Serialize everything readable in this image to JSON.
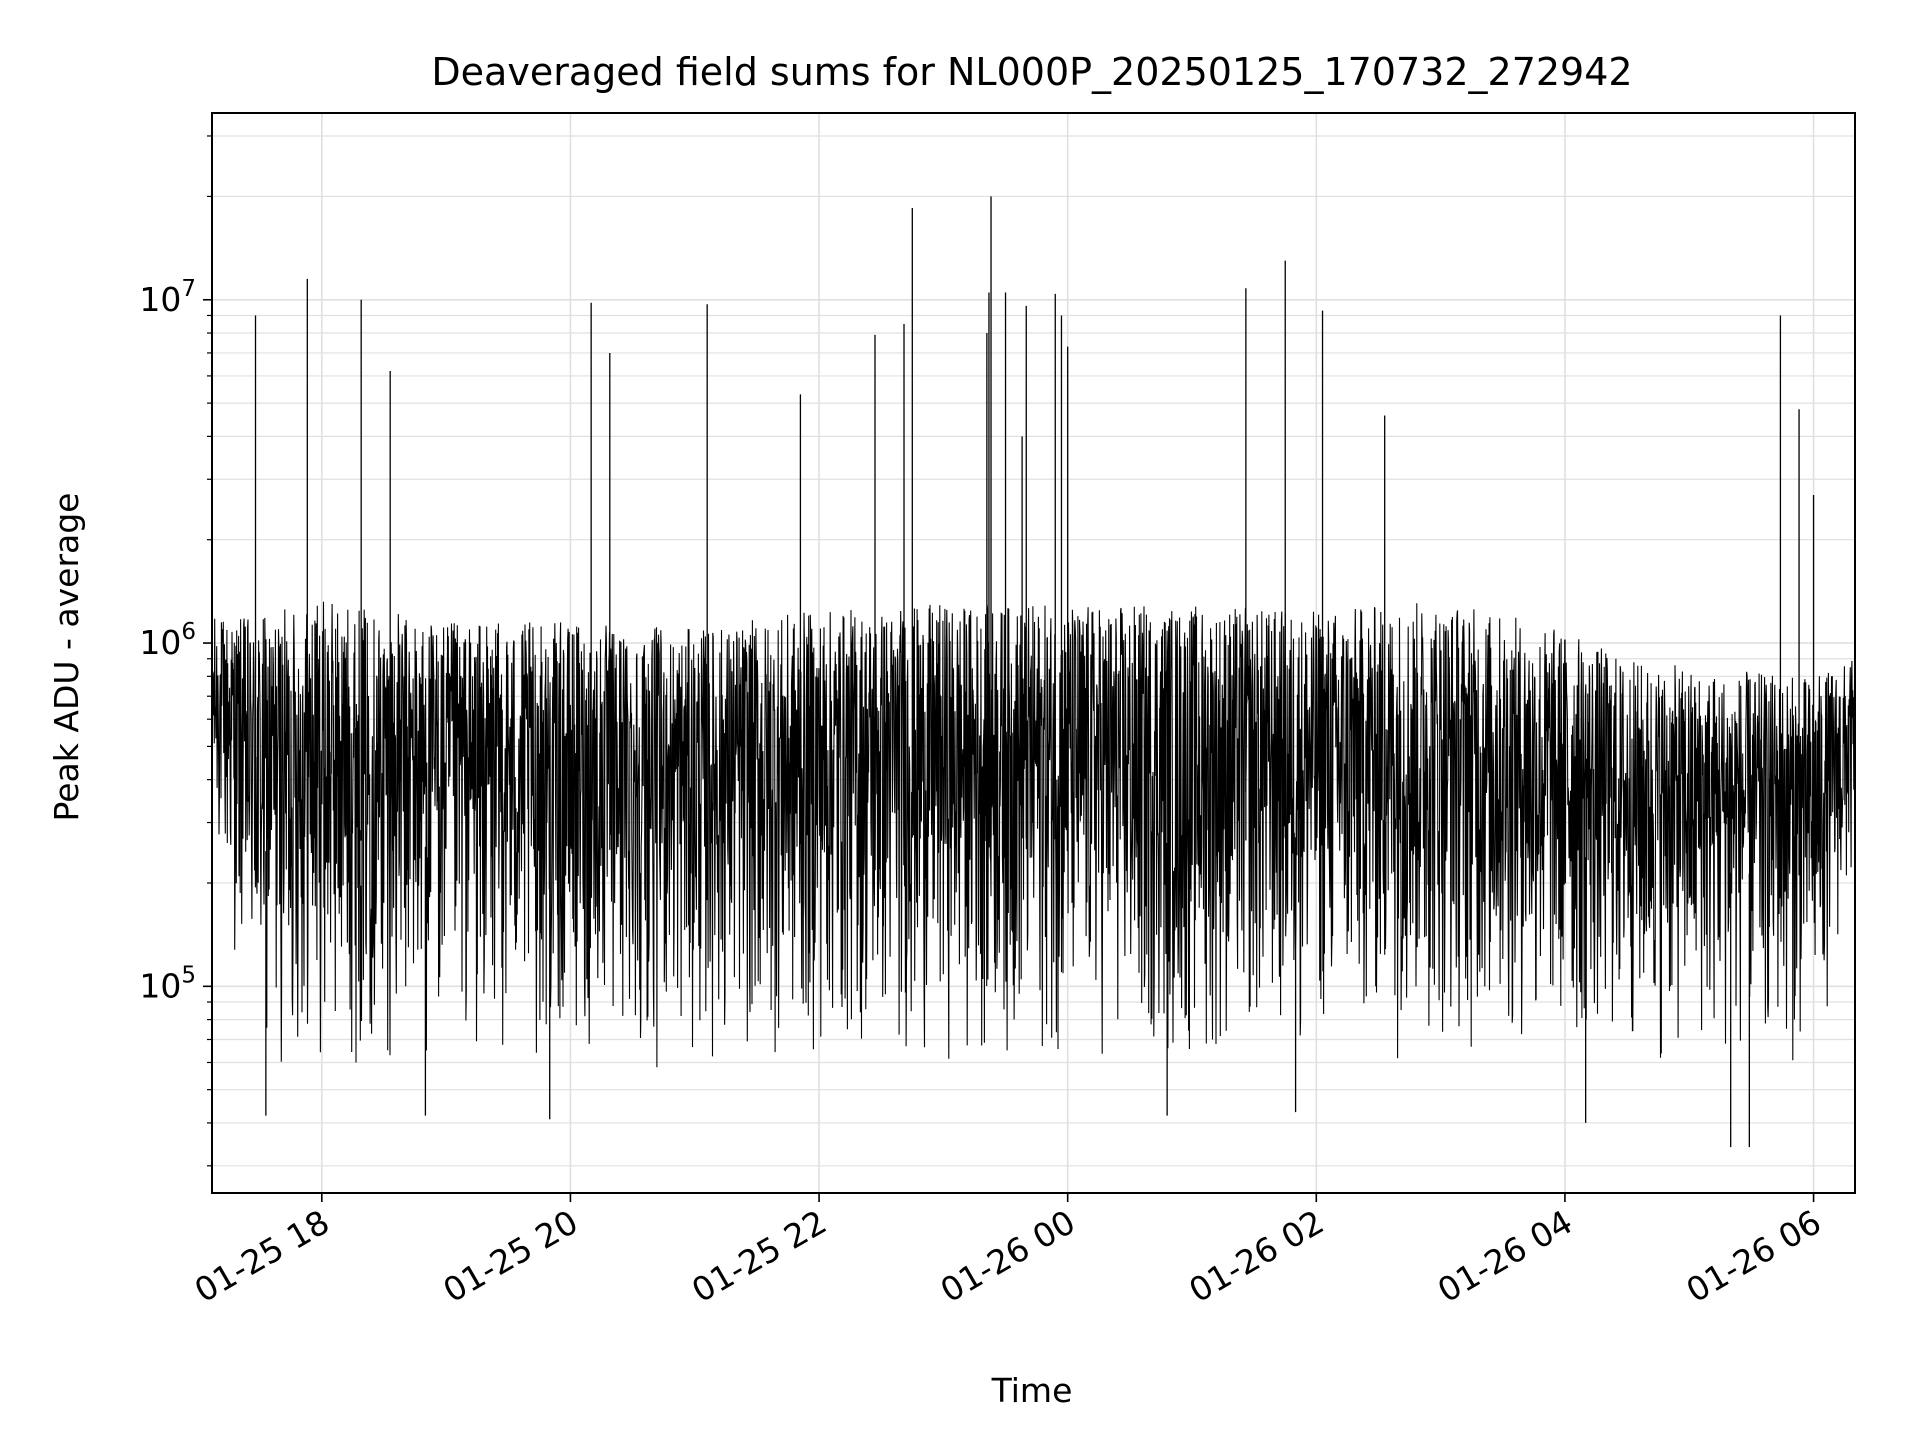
{
  "chart_data": {
    "type": "line",
    "title": "Deaveraged field sums for NL000P_20250125_170732_272942",
    "xlabel": "Time",
    "ylabel": "Peak ADU - average",
    "x_range": [
      "2025-01-25 17:07",
      "2025-01-26 06:20"
    ],
    "y_range": [
      25000,
      35000000
    ],
    "y_scale": "log",
    "grid": true,
    "line_color": "#000000",
    "grid_color": "#e0e0e0",
    "x_ticks": [
      {
        "time": "2025-01-25 18:00",
        "label": "01-25 18"
      },
      {
        "time": "2025-01-25 20:00",
        "label": "01-25 20"
      },
      {
        "time": "2025-01-25 22:00",
        "label": "01-25 22"
      },
      {
        "time": "2025-01-26 00:00",
        "label": "01-26 00"
      },
      {
        "time": "2025-01-26 02:00",
        "label": "01-26 02"
      },
      {
        "time": "2025-01-26 04:00",
        "label": "01-26 04"
      },
      {
        "time": "2025-01-26 06:00",
        "label": "01-26 06"
      }
    ],
    "y_ticks": [
      {
        "value": 100000,
        "base": "10",
        "exp": "5"
      },
      {
        "value": 1000000,
        "base": "10",
        "exp": "6"
      },
      {
        "value": 10000000,
        "base": "10",
        "exp": "7"
      }
    ],
    "envelope": [
      {
        "time": "2025-01-25 17:07",
        "upper": 1200000,
        "lower": 250000
      },
      {
        "time": "2025-01-25 17:30",
        "upper": 1200000,
        "lower": 50000
      },
      {
        "time": "2025-01-25 18:00",
        "upper": 1350000,
        "lower": 55000
      },
      {
        "time": "2025-01-25 19:00",
        "upper": 1150000,
        "lower": 55000
      },
      {
        "time": "2025-01-25 20:00",
        "upper": 1150000,
        "lower": 55000
      },
      {
        "time": "2025-01-25 21:00",
        "upper": 1100000,
        "lower": 55000
      },
      {
        "time": "2025-01-25 22:00",
        "upper": 1250000,
        "lower": 55000
      },
      {
        "time": "2025-01-25 23:00",
        "upper": 1300000,
        "lower": 58000
      },
      {
        "time": "2025-01-26 00:00",
        "upper": 1300000,
        "lower": 55000
      },
      {
        "time": "2025-01-26 01:00",
        "upper": 1300000,
        "lower": 52000
      },
      {
        "time": "2025-01-26 02:00",
        "upper": 1250000,
        "lower": 60000
      },
      {
        "time": "2025-01-26 03:00",
        "upper": 1350000,
        "lower": 60000
      },
      {
        "time": "2025-01-26 04:00",
        "upper": 1100000,
        "lower": 55000
      },
      {
        "time": "2025-01-26 04:30",
        "upper": 900000,
        "lower": 55000
      },
      {
        "time": "2025-01-26 05:00",
        "upper": 850000,
        "lower": 55000
      },
      {
        "time": "2025-01-26 06:00",
        "upper": 800000,
        "lower": 55000
      },
      {
        "time": "2025-01-26 06:20",
        "upper": 900000,
        "lower": 180000
      }
    ],
    "spikes": [
      {
        "time": "2025-01-25 17:53",
        "value": 11500000
      },
      {
        "time": "2025-01-25 18:19",
        "value": 10000000
      },
      {
        "time": "2025-01-25 17:28",
        "value": 9000000
      },
      {
        "time": "2025-01-25 18:33",
        "value": 6200000
      },
      {
        "time": "2025-01-25 20:10",
        "value": 9800000
      },
      {
        "time": "2025-01-25 20:19",
        "value": 7000000
      },
      {
        "time": "2025-01-25 21:06",
        "value": 9700000
      },
      {
        "time": "2025-01-25 21:51",
        "value": 5300000
      },
      {
        "time": "2025-01-25 22:27",
        "value": 7900000
      },
      {
        "time": "2025-01-25 22:45",
        "value": 18500000
      },
      {
        "time": "2025-01-25 22:41",
        "value": 8500000
      },
      {
        "time": "2025-01-25 23:22",
        "value": 10500000
      },
      {
        "time": "2025-01-25 23:38",
        "value": 4000000
      },
      {
        "time": "2025-01-25 23:57",
        "value": 9000000
      },
      {
        "time": "2025-01-26 00:00",
        "value": 7300000
      },
      {
        "time": "2025-01-25 23:21",
        "value": 8000000
      },
      {
        "time": "2025-01-25 23:23",
        "value": 20000000
      },
      {
        "time": "2025-01-25 23:30",
        "value": 10500000
      },
      {
        "time": "2025-01-25 23:40",
        "value": 9600000
      },
      {
        "time": "2025-01-25 23:54",
        "value": 10400000
      },
      {
        "time": "2025-01-26 01:26",
        "value": 10800000
      },
      {
        "time": "2025-01-26 01:45",
        "value": 13000000
      },
      {
        "time": "2025-01-26 02:03",
        "value": 9300000
      },
      {
        "time": "2025-01-26 02:33",
        "value": 4600000
      },
      {
        "time": "2025-01-26 05:44",
        "value": 9000000
      },
      {
        "time": "2025-01-26 05:53",
        "value": 4800000
      },
      {
        "time": "2025-01-26 06:00",
        "value": 2700000
      }
    ],
    "dips": [
      {
        "time": "2025-01-25 17:33",
        "value": 42000
      },
      {
        "time": "2025-01-25 18:50",
        "value": 42000
      },
      {
        "time": "2025-01-25 19:50",
        "value": 41000
      },
      {
        "time": "2025-01-26 00:48",
        "value": 42000
      },
      {
        "time": "2025-01-26 01:50",
        "value": 43000
      },
      {
        "time": "2025-01-26 04:10",
        "value": 40000
      },
      {
        "time": "2025-01-26 05:20",
        "value": 34000
      },
      {
        "time": "2025-01-26 05:29",
        "value": 34000
      }
    ]
  }
}
